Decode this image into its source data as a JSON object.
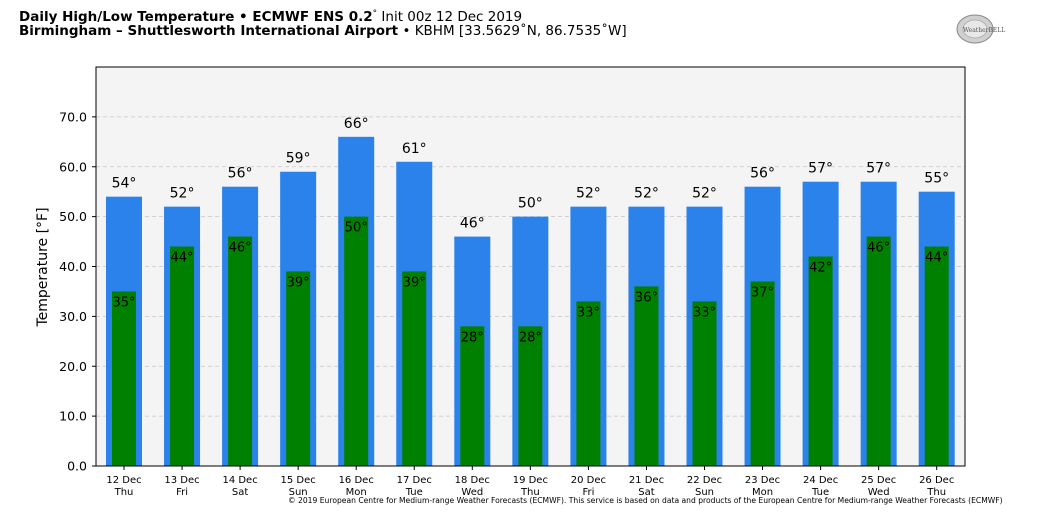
{
  "header": {
    "title_bold": "Daily High/Low Temperature • ECMWF ENS 0.2",
    "title_deg": "°",
    "title_init": "Init 00z 12 Dec 2019",
    "location_bold": "Birmingham – Shuttlesworth International Airport",
    "location_rest": "• KBHM [33.5629˚N, 86.7535˚W]"
  },
  "logo": {
    "text": "WeatherBELL",
    "icon": "weatherbell-logo"
  },
  "footer": {
    "credit": "© 2019 European Centre for Medium-range Weather Forecasts (ECMWF). This service is based on data and products of the European Centre for Medium-range Weather Forecasts (ECMWF)"
  },
  "colors": {
    "high": "#2a82ea",
    "low": "#008000",
    "plot_bg": "#f4f4f4"
  },
  "chart_data": {
    "type": "bar",
    "ylabel": "Temperature [°F]",
    "ylim": [
      0,
      80
    ],
    "yticks": [
      "0.0",
      "10.0",
      "20.0",
      "30.0",
      "40.0",
      "50.0",
      "60.0",
      "70.0"
    ],
    "grid": true,
    "categories": [
      [
        "12 Dec",
        "Thu"
      ],
      [
        "13 Dec",
        "Fri"
      ],
      [
        "14 Dec",
        "Sat"
      ],
      [
        "15 Dec",
        "Sun"
      ],
      [
        "16 Dec",
        "Mon"
      ],
      [
        "17 Dec",
        "Tue"
      ],
      [
        "18 Dec",
        "Wed"
      ],
      [
        "19 Dec",
        "Thu"
      ],
      [
        "20 Dec",
        "Fri"
      ],
      [
        "21 Dec",
        "Sat"
      ],
      [
        "22 Dec",
        "Sun"
      ],
      [
        "23 Dec",
        "Mon"
      ],
      [
        "24 Dec",
        "Tue"
      ],
      [
        "25 Dec",
        "Wed"
      ],
      [
        "26 Dec",
        "Thu"
      ]
    ],
    "series": [
      {
        "key": "high",
        "values": [
          54,
          52,
          56,
          59,
          66,
          61,
          46,
          50,
          52,
          52,
          52,
          56,
          57,
          57,
          55
        ]
      },
      {
        "key": "low",
        "values": [
          35,
          44,
          46,
          39,
          50,
          39,
          28,
          28,
          33,
          36,
          33,
          37,
          42,
          46,
          44
        ]
      }
    ],
    "label_suffix": "°"
  }
}
